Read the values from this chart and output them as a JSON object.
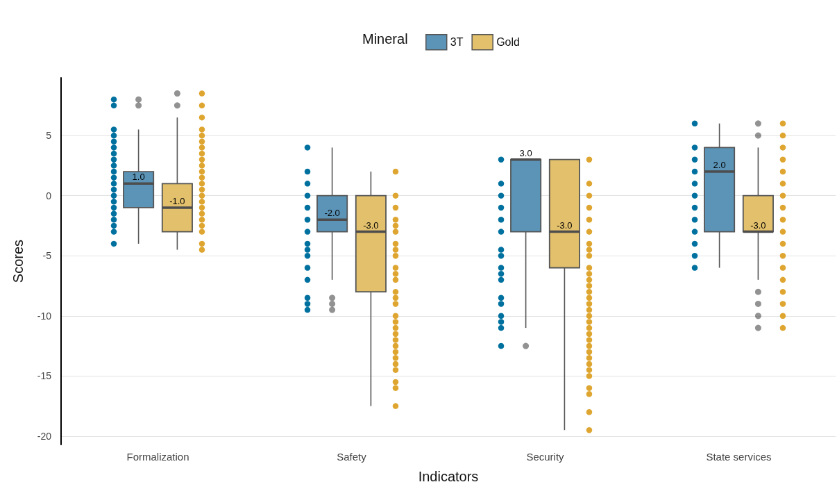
{
  "chart_data": {
    "type": "box",
    "xlabel": "Indicators",
    "ylabel": "Scores",
    "legend_title": "Mineral",
    "legend": "top",
    "grid": "y",
    "marker": "circle",
    "categories": [
      "Formalization",
      "Safety",
      "Security",
      "State services"
    ],
    "ylim": [
      -20.7,
      9.8
    ],
    "yticks": [
      -20,
      -15,
      -10,
      -5,
      0,
      5
    ],
    "series": [
      {
        "name": "3T",
        "color": "#5b94b7",
        "value_labels": [
          "1.0",
          "-2.0",
          "3.0",
          "2.0"
        ],
        "boxes": [
          {
            "low": -4,
            "q1": -1,
            "median": 1,
            "q3": 2,
            "high": 5.5,
            "outliers": [
              7.5,
              8
            ]
          },
          {
            "low": -7,
            "q1": -3,
            "median": -2,
            "q3": 0,
            "high": 4,
            "outliers": [
              -8.5,
              -9,
              -9.5
            ]
          },
          {
            "low": -11,
            "q1": -3,
            "median": 3,
            "q3": 3,
            "high": 3,
            "outliers": [
              -12.5
            ]
          },
          {
            "low": -6,
            "q1": -3,
            "median": 2,
            "q3": 4,
            "high": 6
          }
        ]
      },
      {
        "name": "Gold",
        "color": "#e2c06c",
        "value_labels": [
          "-1.0",
          "-3.0",
          "-3.0",
          "-3.0"
        ],
        "boxes": [
          {
            "low": -4.5,
            "q1": -3,
            "median": -1,
            "q3": 1,
            "high": 6.5,
            "outliers": [
              7.5,
              8.5
            ]
          },
          {
            "low": -17.5,
            "q1": -8,
            "median": -3,
            "q3": 0,
            "high": 2
          },
          {
            "low": -19.5,
            "q1": -6,
            "median": -3,
            "q3": 3,
            "high": 3
          },
          {
            "low": -7,
            "q1": -3,
            "median": -3,
            "q3": 0,
            "high": 4,
            "outliers": [
              6,
              5,
              -8,
              -9,
              -10,
              -11
            ]
          }
        ]
      },
      {
        "type": "scatter",
        "color": "#00719f",
        "x": [
          "Formalization",
          "Formalization",
          "Formalization",
          "Formalization",
          "Formalization",
          "Formalization",
          "Formalization",
          "Formalization",
          "Formalization",
          "Formalization",
          "Formalization",
          "Formalization",
          "Formalization",
          "Formalization",
          "Formalization",
          "Formalization",
          "Formalization",
          "Formalization",
          "Formalization",
          "Formalization",
          "Formalization",
          "Safety",
          "Safety",
          "Safety",
          "Safety",
          "Safety",
          "Safety",
          "Safety",
          "Safety",
          "Safety",
          "Safety",
          "Safety",
          "Safety",
          "Safety",
          "Safety",
          "Safety",
          "Security",
          "Security",
          "Security",
          "Security",
          "Security",
          "Security",
          "Security",
          "Security",
          "Security",
          "Security",
          "Security",
          "Security",
          "Security",
          "Security",
          "Security",
          "Security",
          "Security",
          "State services",
          "State services",
          "State services",
          "State services",
          "State services",
          "State services",
          "State services",
          "State services",
          "State services",
          "State services",
          "State services",
          "State services"
        ],
        "values": [
          8,
          7.5,
          5.5,
          5,
          4.5,
          4,
          3.5,
          3,
          2.5,
          2,
          1.5,
          1,
          0.5,
          0,
          -0.5,
          -1,
          -1.5,
          -2,
          -2.5,
          -3,
          -4,
          4,
          2,
          1,
          0,
          -1,
          -2,
          -3,
          -4,
          -4.5,
          -5,
          -6,
          -7,
          -8.5,
          -9,
          -9.5,
          3,
          1,
          0,
          -1,
          -2,
          -3,
          -4.5,
          -5,
          -6,
          -6.5,
          -7,
          -8.5,
          -9,
          -10,
          -10.5,
          -11,
          -12.5,
          6,
          4,
          3,
          2,
          1,
          0,
          -1,
          -2,
          -3,
          -4,
          -5,
          -6
        ]
      },
      {
        "type": "scatter",
        "color": "#dea630",
        "x": [
          "Formalization",
          "Formalization",
          "Formalization",
          "Formalization",
          "Formalization",
          "Formalization",
          "Formalization",
          "Formalization",
          "Formalization",
          "Formalization",
          "Formalization",
          "Formalization",
          "Formalization",
          "Formalization",
          "Formalization",
          "Formalization",
          "Formalization",
          "Formalization",
          "Formalization",
          "Formalization",
          "Formalization",
          "Formalization",
          "Formalization",
          "Safety",
          "Safety",
          "Safety",
          "Safety",
          "Safety",
          "Safety",
          "Safety",
          "Safety",
          "Safety",
          "Safety",
          "Safety",
          "Safety",
          "Safety",
          "Safety",
          "Safety",
          "Safety",
          "Safety",
          "Safety",
          "Safety",
          "Safety",
          "Safety",
          "Safety",
          "Safety",
          "Safety",
          "Safety",
          "Safety",
          "Safety",
          "Safety",
          "Security",
          "Security",
          "Security",
          "Security",
          "Security",
          "Security",
          "Security",
          "Security",
          "Security",
          "Security",
          "Security",
          "Security",
          "Security",
          "Security",
          "Security",
          "Security",
          "Security",
          "Security",
          "Security",
          "Security",
          "Security",
          "Security",
          "Security",
          "Security",
          "Security",
          "Security",
          "Security",
          "Security",
          "Security",
          "Security",
          "Security",
          "Security",
          "State services",
          "State services",
          "State services",
          "State services",
          "State services",
          "State services",
          "State services",
          "State services",
          "State services",
          "State services",
          "State services",
          "State services",
          "State services",
          "State services",
          "State services",
          "State services",
          "State services",
          "State services"
        ],
        "values": [
          8.5,
          7.5,
          6.5,
          5.5,
          5,
          4.5,
          4,
          3.5,
          3,
          2.5,
          2,
          1.5,
          1,
          0.5,
          0,
          -0.5,
          -1,
          -1.5,
          -2,
          -2.5,
          -3,
          -4,
          -4.5,
          2,
          0,
          -1,
          -2,
          -2.5,
          -3,
          -4,
          -4.5,
          -5,
          -6,
          -6.5,
          -7,
          -8,
          -8.5,
          -9,
          -10,
          -10.5,
          -11,
          -11.5,
          -12,
          -12.5,
          -13,
          -13.5,
          -14,
          -14.5,
          -15.5,
          -16,
          -17.5,
          3,
          1,
          0,
          -1,
          -2,
          -3,
          -4,
          -4.5,
          -5,
          -6,
          -6.5,
          -7,
          -7.5,
          -8,
          -8.5,
          -9,
          -9.5,
          -10,
          -10.5,
          -11,
          -11.5,
          -12,
          -12.5,
          -13,
          -13.5,
          -14,
          -14.5,
          -15,
          -16,
          -16.5,
          -18,
          -19.5,
          6,
          5,
          4,
          3,
          2,
          1,
          0,
          -1,
          -2,
          -3,
          -4,
          -5,
          -6,
          -7,
          -8,
          -9,
          -10,
          -11
        ]
      }
    ]
  }
}
